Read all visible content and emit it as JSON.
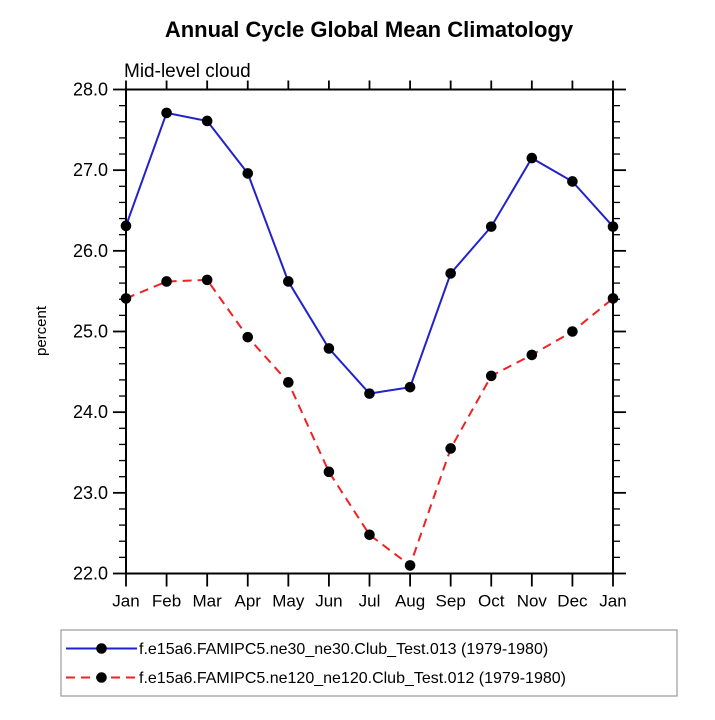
{
  "chart_data": {
    "type": "line",
    "title": "Annual Cycle Global Mean Climatology",
    "subtitle": "Mid-level cloud",
    "ylabel": "percent",
    "x_categories": [
      "Jan",
      "Feb",
      "Mar",
      "Apr",
      "May",
      "Jun",
      "Jul",
      "Aug",
      "Sep",
      "Oct",
      "Nov",
      "Dec",
      "Jan"
    ],
    "ylim": [
      22.0,
      28.0
    ],
    "y_major_step": 1.0,
    "y_minor_step": 0.2,
    "y_major_tick_labels": [
      "22.0",
      "23.0",
      "24.0",
      "25.0",
      "26.0",
      "27.0",
      "28.0"
    ],
    "grid": false,
    "legend_position": "bottom-boxed",
    "marker": {
      "shape": "circle",
      "color": "#000000"
    },
    "axis_color": "#000000",
    "legend_border_color": "#999999",
    "series": [
      {
        "name": "f.e15a6.FAMIPC5.ne30_ne30.Club_Test.013 (1979-1980)",
        "color": "#2222cc",
        "line_style": "solid",
        "values": [
          26.31,
          27.71,
          27.61,
          26.96,
          25.62,
          24.79,
          24.23,
          24.31,
          25.72,
          26.3,
          27.15,
          26.86,
          26.3
        ]
      },
      {
        "name": "f.e15a6.FAMIPC5.ne120_ne120.Club_Test.012 (1979-1980)",
        "color": "#ee2222",
        "line_style": "dashed",
        "values": [
          25.41,
          25.62,
          25.64,
          24.93,
          24.37,
          23.26,
          22.48,
          22.1,
          23.55,
          24.45,
          24.71,
          25.0,
          25.41
        ]
      }
    ]
  }
}
